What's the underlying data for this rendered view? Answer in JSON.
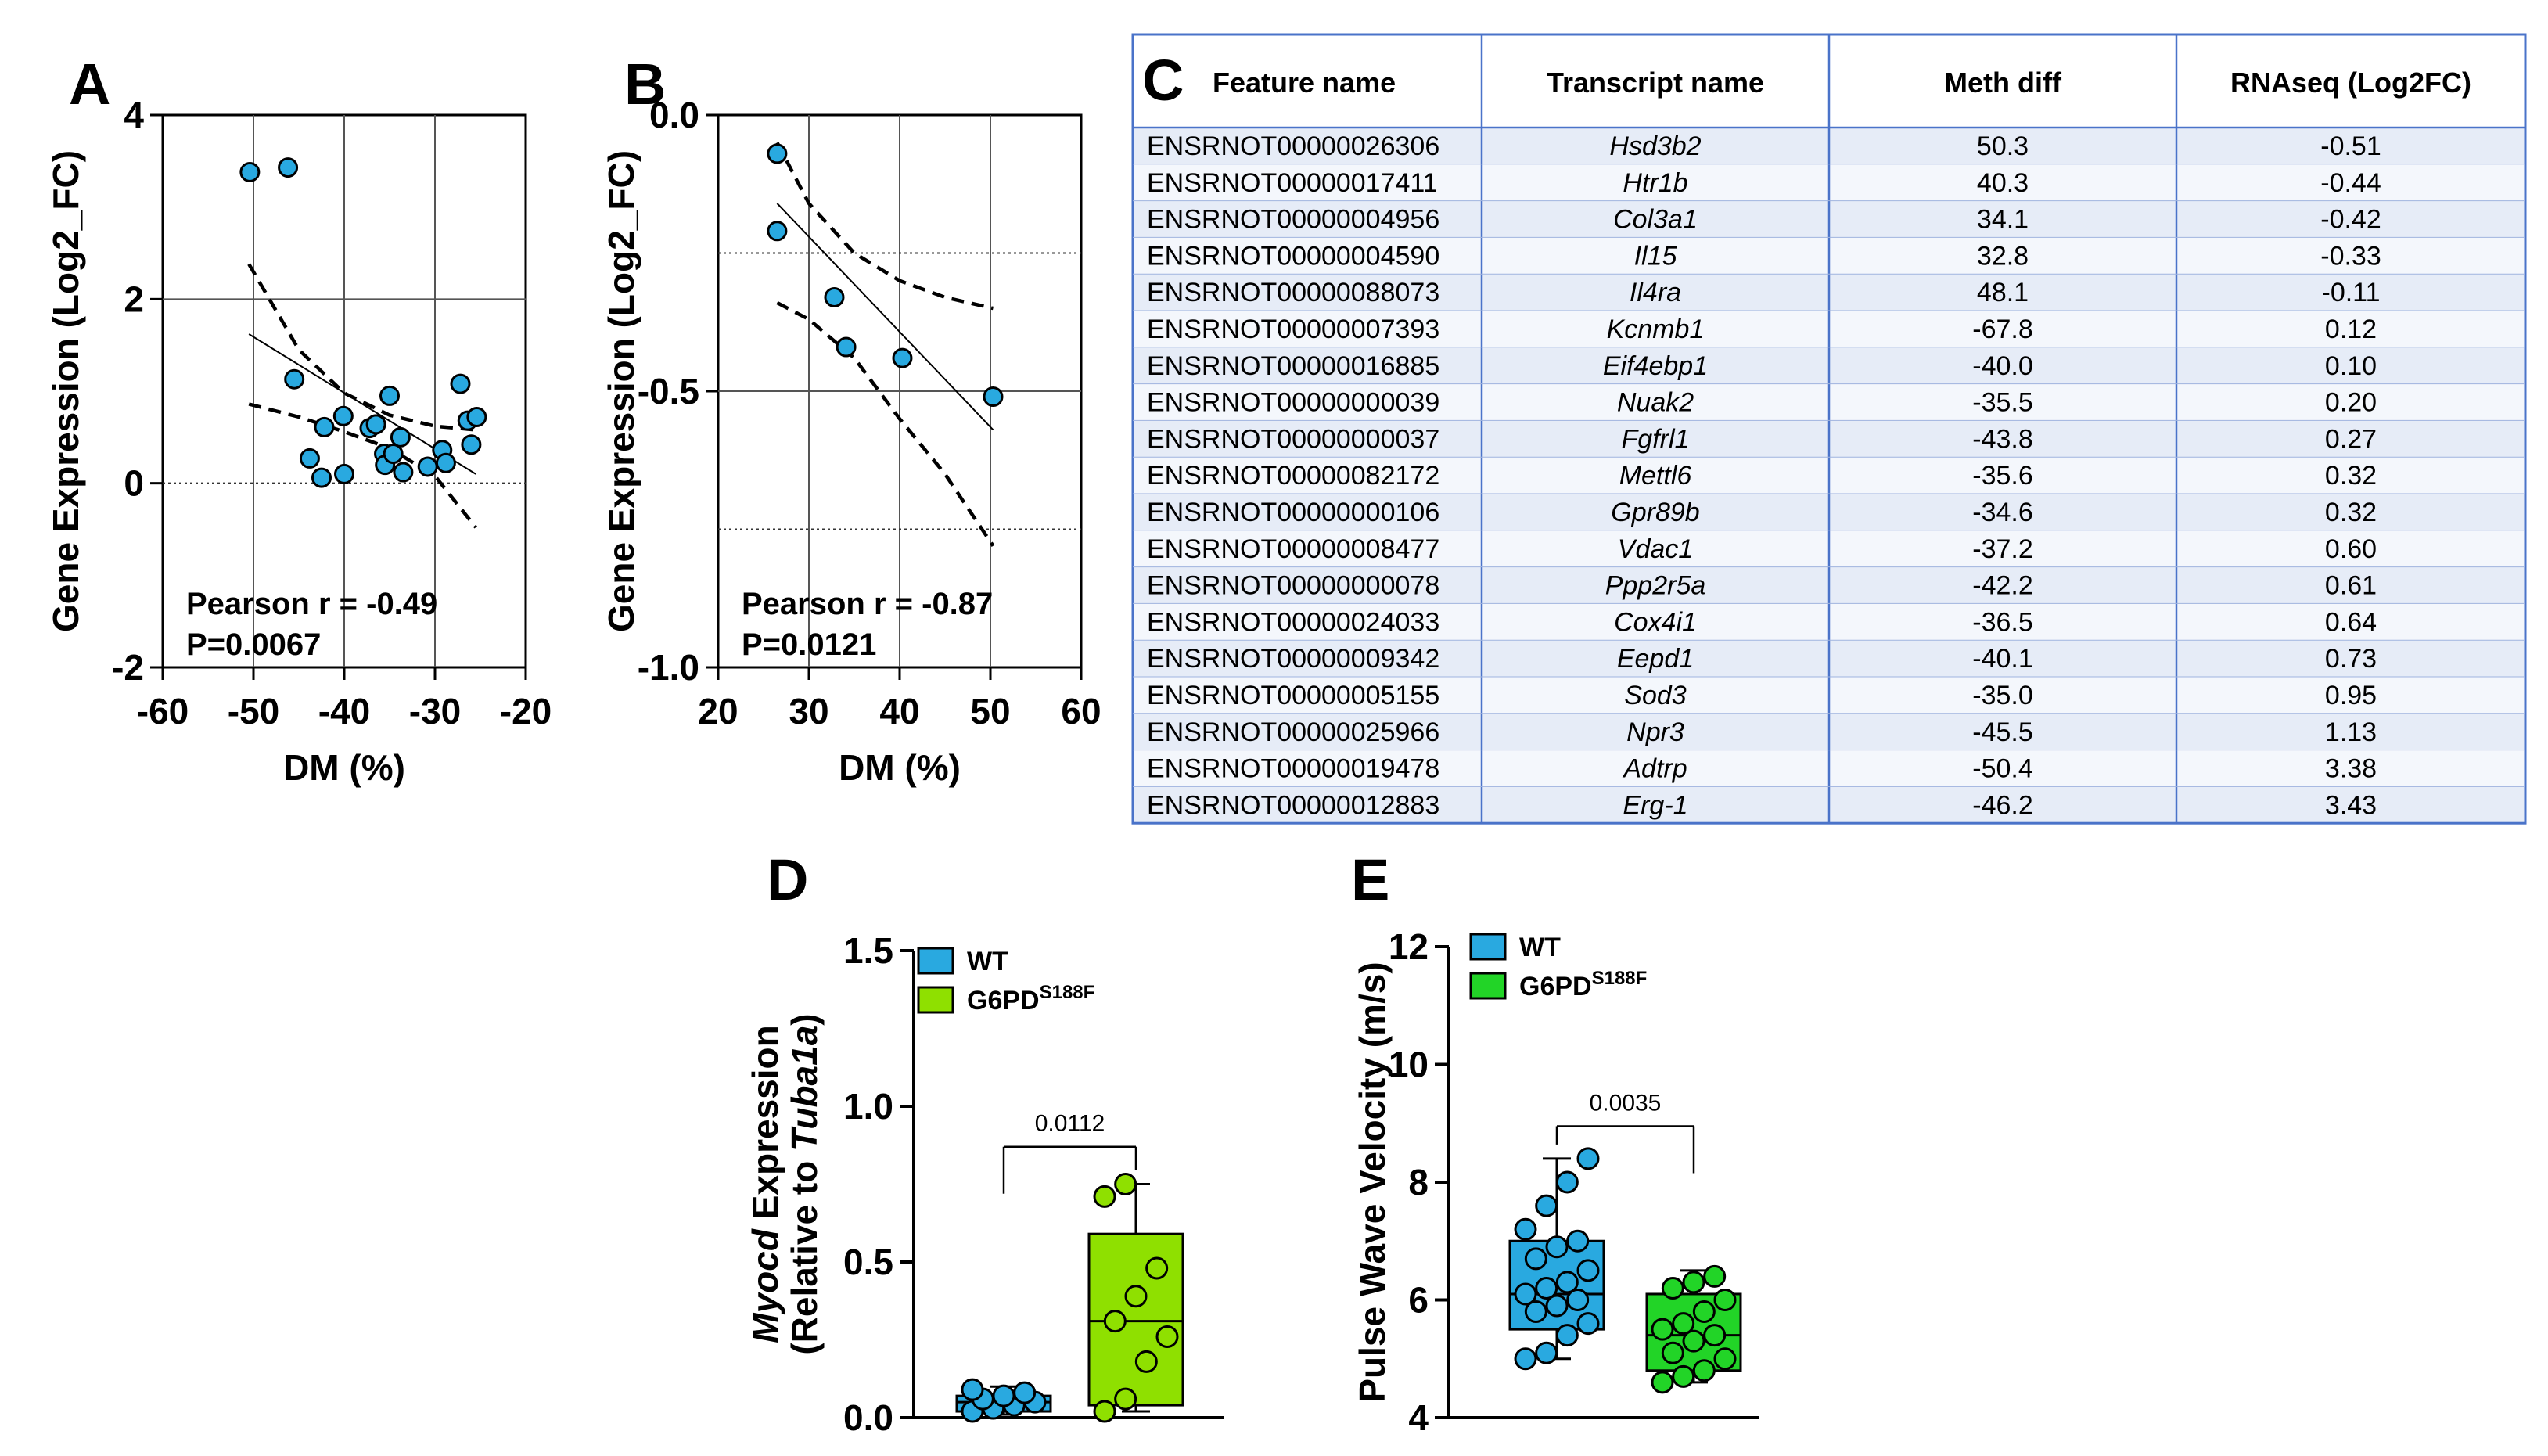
{
  "colors": {
    "wt_blue": "#29a9e0",
    "g6pd_green": "#8fe000",
    "g6pd_green_e": "#22d427",
    "table_border": "#4a73c9",
    "table_row_alt": "#e6ecf7",
    "table_row": "#f4f7fc"
  },
  "chart_data": [
    {
      "id": "A",
      "panel_letter": "A",
      "type": "scatter",
      "xlabel": "DM (%)",
      "ylabel": "Gene Expression (Log2_FC)",
      "xlim": [
        -60,
        -20
      ],
      "ylim": [
        -2,
        4
      ],
      "x_ticks": [
        -60,
        -50,
        -40,
        -30,
        -20
      ],
      "y_ticks": [
        -2,
        0,
        2,
        4
      ],
      "x_tick_labels": [
        "-60",
        "-50",
        "-40",
        "-30",
        "-20"
      ],
      "y_tick_labels": [
        "-2",
        "0",
        "2",
        "4"
      ],
      "annotation_r": "Pearson r = -0.49",
      "annotation_p": "P=0.0067",
      "points": [
        {
          "x": -50.4,
          "y": 3.38
        },
        {
          "x": -46.2,
          "y": 3.43
        },
        {
          "x": -45.5,
          "y": 1.13
        },
        {
          "x": -43.8,
          "y": 0.27
        },
        {
          "x": -42.2,
          "y": 0.61
        },
        {
          "x": -40.1,
          "y": 0.73
        },
        {
          "x": -40.0,
          "y": 0.1
        },
        {
          "x": -37.2,
          "y": 0.6
        },
        {
          "x": -36.5,
          "y": 0.64
        },
        {
          "x": -35.6,
          "y": 0.32
        },
        {
          "x": -35.5,
          "y": 0.2
        },
        {
          "x": -35.0,
          "y": 0.95
        },
        {
          "x": -34.6,
          "y": 0.32
        },
        {
          "x": -33.8,
          "y": 0.5
        },
        {
          "x": -33.5,
          "y": 0.12
        },
        {
          "x": -30.8,
          "y": 0.18
        },
        {
          "x": -29.2,
          "y": 0.36
        },
        {
          "x": -28.8,
          "y": 0.22
        },
        {
          "x": -27.2,
          "y": 1.08
        },
        {
          "x": -26.4,
          "y": 0.68
        },
        {
          "x": -26.0,
          "y": 0.42
        },
        {
          "x": -25.4,
          "y": 0.72
        },
        {
          "x": -42.5,
          "y": 0.06
        }
      ],
      "fit_line": [
        [
          -50.5,
          1.62
        ],
        [
          -25.5,
          0.1
        ]
      ],
      "ci_upper": [
        [
          -50.5,
          2.38
        ],
        [
          -45,
          1.45
        ],
        [
          -40,
          0.98
        ],
        [
          -35,
          0.74
        ],
        [
          -30,
          0.62
        ],
        [
          -25.5,
          0.58
        ]
      ],
      "ci_lower": [
        [
          -50.5,
          0.86
        ],
        [
          -45,
          0.72
        ],
        [
          -40,
          0.56
        ],
        [
          -35,
          0.38
        ],
        [
          -30,
          0.08
        ],
        [
          -25.5,
          -0.48
        ]
      ],
      "dotted_hlines": [
        0
      ],
      "solid_hlines": [
        2
      ],
      "vgrid": [
        -50,
        -40,
        -30
      ]
    },
    {
      "id": "B",
      "panel_letter": "B",
      "type": "scatter",
      "xlabel": "DM (%)",
      "ylabel": "Gene Expression (Log2_FC)",
      "xlim": [
        20,
        60
      ],
      "ylim": [
        -1.0,
        0.0
      ],
      "x_ticks": [
        20,
        30,
        40,
        50,
        60
      ],
      "y_ticks": [
        -1.0,
        -0.5,
        0.0
      ],
      "x_tick_labels": [
        "20",
        "30",
        "40",
        "50",
        "60"
      ],
      "y_tick_labels": [
        "-1.0",
        "-0.5",
        "0.0"
      ],
      "annotation_r": "Pearson r = -0.87",
      "annotation_p": "P=0.0121",
      "points": [
        {
          "x": 26.5,
          "y": -0.07
        },
        {
          "x": 26.5,
          "y": -0.21
        },
        {
          "x": 32.8,
          "y": -0.33
        },
        {
          "x": 34.1,
          "y": -0.42
        },
        {
          "x": 40.3,
          "y": -0.44
        },
        {
          "x": 50.3,
          "y": -0.51
        }
      ],
      "fit_line": [
        [
          26.5,
          -0.16
        ],
        [
          50.3,
          -0.57
        ]
      ],
      "ci_upper": [
        [
          26.5,
          -0.05
        ],
        [
          30,
          -0.16
        ],
        [
          35,
          -0.25
        ],
        [
          40,
          -0.3
        ],
        [
          45,
          -0.33
        ],
        [
          50.3,
          -0.35
        ]
      ],
      "ci_lower": [
        [
          26.5,
          -0.34
        ],
        [
          30,
          -0.37
        ],
        [
          35,
          -0.44
        ],
        [
          40,
          -0.55
        ],
        [
          45,
          -0.65
        ],
        [
          50.3,
          -0.78
        ]
      ],
      "dotted_hlines": [
        -0.25,
        -0.75
      ],
      "solid_hlines": [
        -0.5
      ],
      "vgrid": [
        30,
        40,
        50
      ]
    },
    {
      "id": "D",
      "panel_letter": "D",
      "type": "box",
      "ylabel_italic": "Myocd",
      "ylabel_rest": " Expression",
      "ylabel_line2_pre": "(Relative to ",
      "ylabel_line2_italic": "Tuba1a",
      "ylabel_line2_post": ")",
      "ylim": [
        0.0,
        1.5
      ],
      "y_ticks": [
        0.0,
        0.5,
        1.0,
        1.5
      ],
      "y_tick_labels": [
        "0.0",
        "0.5",
        "1.0",
        "1.5"
      ],
      "legend": [
        {
          "label": "WT",
          "sup": "",
          "color": "#29a9e0"
        },
        {
          "label": "G6PD",
          "sup": "S188F",
          "color": "#8fe000"
        }
      ],
      "groups": [
        {
          "name": "WT",
          "color": "#29a9e0",
          "min": 0.01,
          "q1": 0.02,
          "median": 0.05,
          "q3": 0.07,
          "max": 0.1,
          "points": [
            0.02,
            0.03,
            0.04,
            0.05,
            0.06,
            0.07,
            0.08,
            0.09
          ]
        },
        {
          "name": "G6PD S188F",
          "color": "#8fe000",
          "min": 0.02,
          "q1": 0.04,
          "median": 0.31,
          "q3": 0.59,
          "max": 0.75,
          "points": [
            0.02,
            0.06,
            0.18,
            0.26,
            0.31,
            0.39,
            0.48,
            0.71,
            0.75
          ]
        }
      ],
      "comparison_p": "0.0112",
      "bracket_y": 0.87
    },
    {
      "id": "E",
      "panel_letter": "E",
      "type": "box",
      "ylabel": "Pulse Wave Velocity (m/s)",
      "ylim": [
        4,
        12
      ],
      "y_ticks": [
        4,
        6,
        8,
        10,
        12
      ],
      "y_tick_labels": [
        "4",
        "6",
        "8",
        "10",
        "12"
      ],
      "legend": [
        {
          "label": "WT",
          "sup": "",
          "color": "#29a9e0"
        },
        {
          "label": "G6PD",
          "sup": "S188F",
          "color": "#22d427"
        }
      ],
      "groups": [
        {
          "name": "WT",
          "color": "#29a9e0",
          "min": 5.0,
          "q1": 5.5,
          "median": 6.1,
          "q3": 7.0,
          "max": 8.4,
          "points": [
            5.0,
            5.1,
            5.4,
            5.6,
            5.8,
            5.9,
            6.0,
            6.1,
            6.2,
            6.3,
            6.5,
            6.7,
            6.9,
            7.0,
            7.2,
            7.6,
            8.0,
            8.4
          ]
        },
        {
          "name": "G6PD S188F",
          "color": "#22d427",
          "min": 4.6,
          "q1": 4.8,
          "median": 5.4,
          "q3": 6.1,
          "max": 6.5,
          "points": [
            4.6,
            4.7,
            4.8,
            5.0,
            5.1,
            5.3,
            5.4,
            5.5,
            5.6,
            5.8,
            6.0,
            6.2,
            6.3,
            6.4
          ]
        }
      ],
      "comparison_p": "0.0035",
      "bracket_y": 8.95
    }
  ],
  "table": {
    "panel_letter": "C",
    "headers": [
      "Feature name",
      "Transcript name",
      "Meth diff",
      "RNAseq (Log2FC)"
    ],
    "rows": [
      [
        "ENSRNOT00000026306",
        "Hsd3b2",
        "50.3",
        "-0.51"
      ],
      [
        "ENSRNOT00000017411",
        "Htr1b",
        "40.3",
        "-0.44"
      ],
      [
        "ENSRNOT00000004956",
        "Col3a1",
        "34.1",
        "-0.42"
      ],
      [
        "ENSRNOT00000004590",
        "Il15",
        "32.8",
        "-0.33"
      ],
      [
        "ENSRNOT00000088073",
        "Il4ra",
        "48.1",
        "-0.11"
      ],
      [
        "ENSRNOT00000007393",
        "Kcnmb1",
        "-67.8",
        "0.12"
      ],
      [
        "ENSRNOT00000016885",
        "Eif4ebp1",
        "-40.0",
        "0.10"
      ],
      [
        "ENSRNOT00000000039",
        "Nuak2",
        "-35.5",
        "0.20"
      ],
      [
        "ENSRNOT00000000037",
        "Fgfrl1",
        "-43.8",
        "0.27"
      ],
      [
        "ENSRNOT00000082172",
        "Mettl6",
        "-35.6",
        "0.32"
      ],
      [
        "ENSRNOT00000000106",
        "Gpr89b",
        "-34.6",
        "0.32"
      ],
      [
        "ENSRNOT00000008477",
        "Vdac1",
        "-37.2",
        "0.60"
      ],
      [
        "ENSRNOT00000000078",
        "Ppp2r5a",
        "-42.2",
        "0.61"
      ],
      [
        "ENSRNOT00000024033",
        "Cox4i1",
        "-36.5",
        "0.64"
      ],
      [
        "ENSRNOT00000009342",
        "Eepd1",
        "-40.1",
        "0.73"
      ],
      [
        "ENSRNOT00000005155",
        "Sod3",
        "-35.0",
        "0.95"
      ],
      [
        "ENSRNOT00000025966",
        "Npr3",
        "-45.5",
        "1.13"
      ],
      [
        "ENSRNOT00000019478",
        "Adtrp",
        "-50.4",
        "3.38"
      ],
      [
        "ENSRNOT00000012883",
        "Erg-1",
        "-46.2",
        "3.43"
      ]
    ]
  }
}
